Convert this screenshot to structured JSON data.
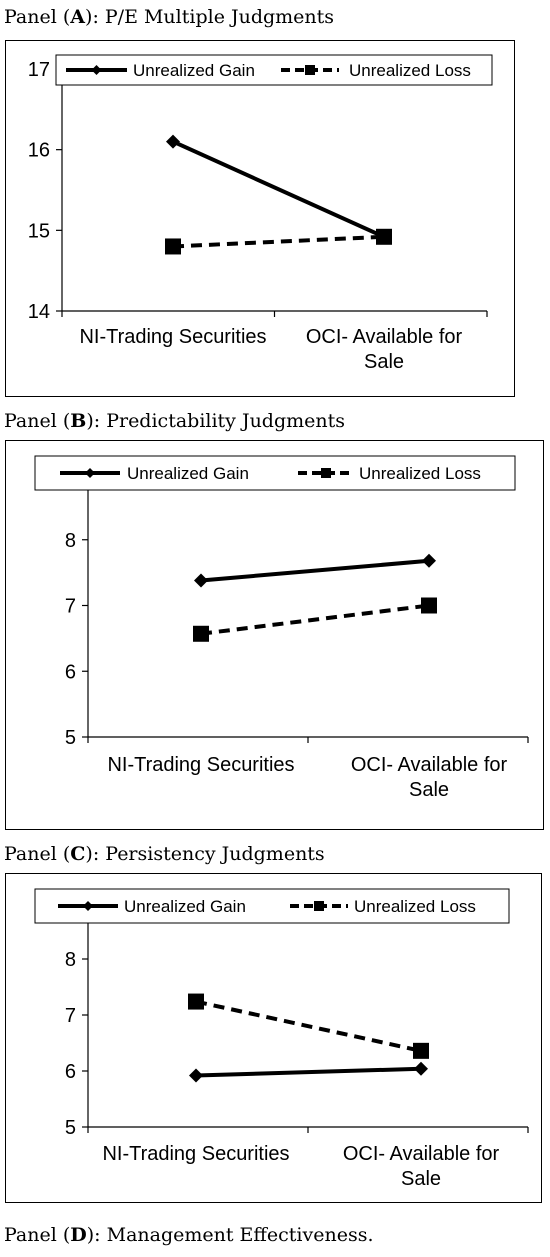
{
  "panels": [
    {
      "caption": {
        "prefix": "Panel (",
        "letter": "A",
        "rest": "): P/E Multiple Judgments"
      },
      "chart_data": {
        "type": "line",
        "categories": [
          [
            "NI-Trading Securities"
          ],
          [
            "OCI- Available for",
            "Sale"
          ]
        ],
        "ylim": [
          14,
          17
        ],
        "yticks": [
          14,
          15,
          16,
          17
        ],
        "series": [
          {
            "name": "Unrealized Gain",
            "values": [
              16.1,
              14.92
            ],
            "marker": "diamond",
            "dash": "solid"
          },
          {
            "name": "Unrealized Loss",
            "values": [
              14.8,
              14.92
            ],
            "marker": "square",
            "dash": "dashed"
          }
        ],
        "legend": "top-inside",
        "grid": false
      }
    },
    {
      "caption": {
        "prefix": "Panel (",
        "letter": "B",
        "rest": "): Predictability Judgments"
      },
      "chart_data": {
        "type": "line",
        "categories": [
          [
            "NI-Trading Securities"
          ],
          [
            "OCI- Available for",
            "Sale"
          ]
        ],
        "ylim": [
          5,
          9
        ],
        "yticks": [
          5,
          6,
          7,
          8
        ],
        "series": [
          {
            "name": "Unrealized Gain",
            "values": [
              7.38,
              7.68
            ],
            "marker": "diamond",
            "dash": "solid"
          },
          {
            "name": "Unrealized Loss",
            "values": [
              6.57,
              7.0
            ],
            "marker": "square",
            "dash": "dashed"
          }
        ],
        "legend": "top-outside",
        "grid": false
      }
    },
    {
      "caption": {
        "prefix": "Panel (",
        "letter": "C",
        "rest": "): Persistency Judgments"
      },
      "chart_data": {
        "type": "line",
        "categories": [
          [
            "NI-Trading Securities"
          ],
          [
            "OCI- Available for",
            "Sale"
          ]
        ],
        "ylim": [
          5,
          9
        ],
        "yticks": [
          5,
          6,
          7,
          8
        ],
        "series": [
          {
            "name": "Unrealized Gain",
            "values": [
              5.92,
              6.04
            ],
            "marker": "diamond",
            "dash": "solid"
          },
          {
            "name": "Unrealized Loss",
            "values": [
              7.24,
              6.36
            ],
            "marker": "square",
            "dash": "dashed"
          }
        ],
        "legend": "top-outside",
        "grid": false
      }
    }
  ],
  "footer_caption": {
    "prefix": "Panel (",
    "letter": "D",
    "rest": "): Management Effectiveness."
  }
}
